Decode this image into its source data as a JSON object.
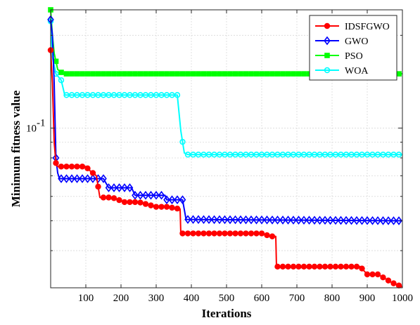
{
  "chart_data": {
    "type": "line",
    "xlabel": "Iterations",
    "ylabel": "Minimum fitness value",
    "x_scale": "linear",
    "y_scale": "log",
    "xlim": [
      0,
      1000
    ],
    "ylim": [
      0.0303,
      0.242
    ],
    "x_ticks": [
      100,
      200,
      300,
      400,
      500,
      600,
      700,
      800,
      900,
      1000
    ],
    "x_tick_labels": [
      "100",
      "200",
      "300",
      "400",
      "500",
      "600",
      "700",
      "800",
      "900",
      "1000"
    ],
    "y_ticks": [
      0.1
    ],
    "y_tick_labels": [
      "10",
      "-1"
    ],
    "grid": true,
    "legend_position": "top-right",
    "series": [
      {
        "name": "IDSFGWO",
        "color": "#ff0000",
        "marker": "circle",
        "points": [
          [
            0,
            0.179
          ],
          [
            5,
            0.14
          ],
          [
            10,
            0.09
          ],
          [
            15,
            0.077
          ],
          [
            20,
            0.075
          ],
          [
            100,
            0.075
          ],
          [
            110,
            0.073
          ],
          [
            130,
            0.07
          ],
          [
            140,
            0.0595
          ],
          [
            175,
            0.0595
          ],
          [
            210,
            0.0575
          ],
          [
            250,
            0.0575
          ],
          [
            300,
            0.0555
          ],
          [
            330,
            0.0555
          ],
          [
            368,
            0.0546
          ],
          [
            370,
            0.0455
          ],
          [
            600,
            0.0455
          ],
          [
            625,
            0.0445
          ],
          [
            640,
            0.0445
          ],
          [
            642,
            0.0355
          ],
          [
            880,
            0.0355
          ],
          [
            900,
            0.0335
          ],
          [
            930,
            0.0335
          ],
          [
            950,
            0.0325
          ],
          [
            970,
            0.0315
          ],
          [
            1000,
            0.0305
          ]
        ]
      },
      {
        "name": "GWO",
        "color": "#0000ff",
        "marker": "diamond",
        "points": [
          [
            0,
            0.225
          ],
          [
            5,
            0.2
          ],
          [
            10,
            0.14
          ],
          [
            15,
            0.08
          ],
          [
            20,
            0.0715
          ],
          [
            25,
            0.0685
          ],
          [
            150,
            0.0685
          ],
          [
            165,
            0.064
          ],
          [
            230,
            0.064
          ],
          [
            240,
            0.0605
          ],
          [
            325,
            0.0605
          ],
          [
            330,
            0.0585
          ],
          [
            375,
            0.0585
          ],
          [
            385,
            0.0505
          ],
          [
            1000,
            0.05
          ]
        ]
      },
      {
        "name": "PSO",
        "color": "#00ff00",
        "marker": "square",
        "points": [
          [
            0,
            0.242
          ],
          [
            5,
            0.2
          ],
          [
            10,
            0.175
          ],
          [
            20,
            0.155
          ],
          [
            35,
            0.15
          ],
          [
            1000,
            0.15
          ]
        ]
      },
      {
        "name": "WOA",
        "color": "#00ffff",
        "marker": "circle",
        "points": [
          [
            0,
            0.222
          ],
          [
            5,
            0.17
          ],
          [
            15,
            0.15
          ],
          [
            30,
            0.143
          ],
          [
            40,
            0.128
          ],
          [
            360,
            0.128
          ],
          [
            370,
            0.098
          ],
          [
            380,
            0.083
          ],
          [
            390,
            0.082
          ],
          [
            1000,
            0.082
          ]
        ]
      }
    ]
  }
}
